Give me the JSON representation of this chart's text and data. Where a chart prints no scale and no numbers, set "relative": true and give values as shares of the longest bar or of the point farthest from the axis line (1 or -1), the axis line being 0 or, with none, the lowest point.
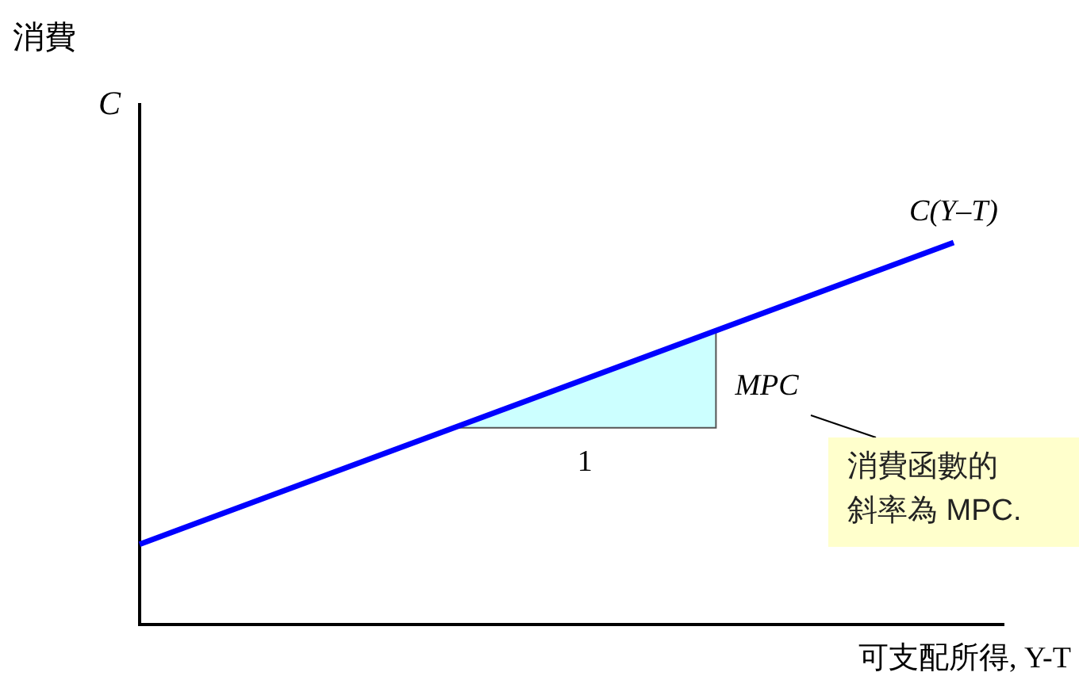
{
  "chart_data": {
    "type": "line",
    "relative": true,
    "ylabel": "C",
    "xlabel": "可支配所得, Y-T",
    "categories": [
      null,
      null
    ],
    "series": [
      {
        "name": "C(Y–T)",
        "color": "#0000ff",
        "values": [
          0.21,
          1
        ]
      }
    ],
    "annotations": [
      "消費",
      "1",
      "MPC",
      "消費函數的",
      "斜率為 MPC."
    ]
  }
}
